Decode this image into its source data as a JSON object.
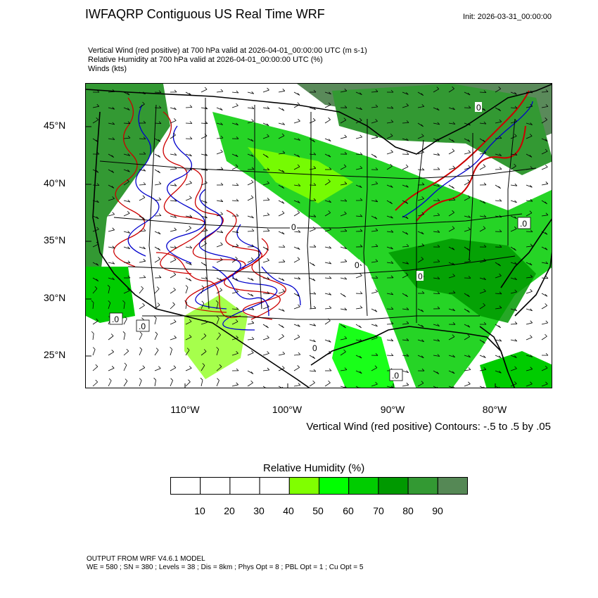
{
  "header": {
    "title": "IWFAQRP Contiguous US Real Time WRF",
    "init": "Init: 2026-03-31_00:00:00",
    "subtitles": [
      "Vertical Wind (red positive) at 700 hPa valid at 2026-04-01_00:00:00 UTC   (m s-1)",
      "Relative Humidity at 700 hPa valid at 2026-04-01_00:00:00 UTC   (%)",
      "Winds   (kts)"
    ]
  },
  "map": {
    "lat_labels": [
      "45°N",
      "40°N",
      "35°N",
      "30°N",
      "25°N"
    ],
    "lon_labels": [
      "110°W",
      "100°W",
      "90°W",
      "80°W"
    ],
    "contour_labels": [
      "0",
      "0",
      "0",
      "0",
      "0",
      ".0",
      ".0",
      ".0",
      ".0"
    ],
    "contour_note": "Vertical Wind (red positive) Contours: -.5 to .5 by .05"
  },
  "colorbar": {
    "title": "Relative Humidity  (%)",
    "labels": [
      "10",
      "20",
      "30",
      "40",
      "50",
      "60",
      "70",
      "80",
      "90"
    ],
    "colors": [
      "#ffffff",
      "#ffffff",
      "#ffffff",
      "#ffffff",
      "#80ff00",
      "#00ff00",
      "#00cc00",
      "#009900",
      "#339933",
      "#558855"
    ]
  },
  "footer": {
    "line1": "OUTPUT FROM WRF V4.6.1 MODEL",
    "line2": "WE = 580 ; SN = 380 ; Levels = 38 ; Dis = 8km ; Phys Opt = 8 ; PBL Opt = 1 ; Cu Opt = 5"
  }
}
